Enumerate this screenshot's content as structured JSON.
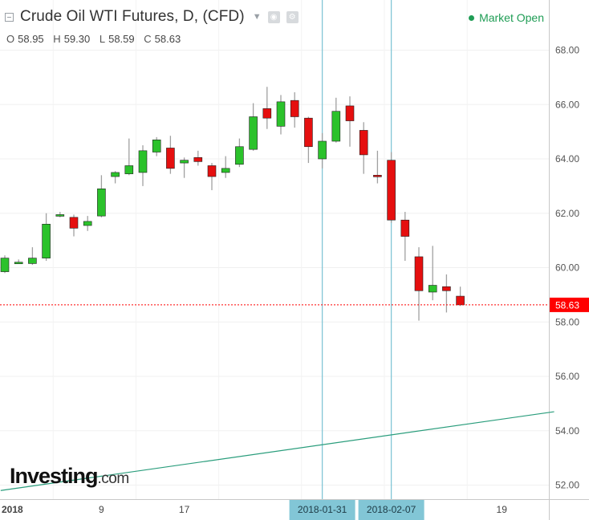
{
  "header": {
    "title": "Crude Oil WTI Futures, D, (CFD)",
    "status": "Market Open",
    "ohlc": [
      {
        "label": "O",
        "value": "58.95"
      },
      {
        "label": "H",
        "value": "59.30"
      },
      {
        "label": "L",
        "value": "58.59"
      },
      {
        "label": "C",
        "value": "58.63"
      }
    ]
  },
  "logo": {
    "main": "Investing",
    "domain": ".com"
  },
  "colors": {
    "up": "#2bc22b",
    "down": "#e50f0f",
    "wick": "#a0a0a0",
    "trend": "#2a9d7c",
    "marker": "#82c6d6",
    "price": "#ff0000"
  },
  "chart_data": {
    "type": "candlestick",
    "ylim": [
      51.5,
      69.7
    ],
    "y_ticks": [
      "52.00",
      "54.00",
      "56.00",
      "58.00",
      "60.00",
      "62.00",
      "64.00",
      "66.00",
      "68.00"
    ],
    "x_ticks": [
      {
        "label": "2018",
        "index": 0
      },
      {
        "label": "9",
        "index": 7
      },
      {
        "label": "17",
        "index": 13
      },
      {
        "label": "19",
        "index": 36
      }
    ],
    "x_markers": [
      {
        "label": "2018-01-31",
        "index": 23
      },
      {
        "label": "2018-02-07",
        "index": 28
      }
    ],
    "last_price": {
      "value": 58.63,
      "label": "58.63"
    },
    "trendline": {
      "start": {
        "index": -0.3,
        "value": 51.8
      },
      "end": {
        "index": 39.8,
        "value": 54.7
      }
    },
    "candles": [
      {
        "o": 59.85,
        "h": 60.45,
        "l": 59.8,
        "c": 60.35
      },
      {
        "o": 60.2,
        "h": 60.3,
        "l": 60.15,
        "c": 60.2
      },
      {
        "o": 60.15,
        "h": 60.75,
        "l": 60.1,
        "c": 60.35
      },
      {
        "o": 60.35,
        "h": 62.0,
        "l": 60.25,
        "c": 61.6
      },
      {
        "o": 61.9,
        "h": 62.05,
        "l": 61.85,
        "c": 61.95
      },
      {
        "o": 61.85,
        "h": 61.95,
        "l": 61.15,
        "c": 61.45
      },
      {
        "o": 61.55,
        "h": 61.9,
        "l": 61.35,
        "c": 61.7
      },
      {
        "o": 61.9,
        "h": 63.4,
        "l": 61.85,
        "c": 62.9
      },
      {
        "o": 63.35,
        "h": 63.55,
        "l": 63.1,
        "c": 63.5
      },
      {
        "o": 63.45,
        "h": 64.75,
        "l": 63.4,
        "c": 63.75
      },
      {
        "o": 63.5,
        "h": 64.5,
        "l": 63.0,
        "c": 64.3
      },
      {
        "o": 64.25,
        "h": 64.8,
        "l": 64.1,
        "c": 64.7
      },
      {
        "o": 64.4,
        "h": 64.85,
        "l": 63.45,
        "c": 63.65
      },
      {
        "o": 63.85,
        "h": 64.05,
        "l": 63.3,
        "c": 63.95
      },
      {
        "o": 64.05,
        "h": 64.3,
        "l": 63.75,
        "c": 63.9
      },
      {
        "o": 63.75,
        "h": 63.85,
        "l": 62.85,
        "c": 63.35
      },
      {
        "o": 63.5,
        "h": 64.1,
        "l": 63.3,
        "c": 63.65
      },
      {
        "o": 63.8,
        "h": 64.75,
        "l": 63.7,
        "c": 64.45
      },
      {
        "o": 64.35,
        "h": 66.05,
        "l": 64.3,
        "c": 65.55
      },
      {
        "o": 65.85,
        "h": 66.65,
        "l": 65.1,
        "c": 65.5
      },
      {
        "o": 65.2,
        "h": 66.35,
        "l": 64.9,
        "c": 66.1
      },
      {
        "o": 66.15,
        "h": 66.45,
        "l": 65.15,
        "c": 65.55
      },
      {
        "o": 65.5,
        "h": 65.55,
        "l": 63.85,
        "c": 64.45
      },
      {
        "o": 64.0,
        "h": 64.95,
        "l": 63.65,
        "c": 64.65
      },
      {
        "o": 64.65,
        "h": 66.25,
        "l": 64.6,
        "c": 65.75
      },
      {
        "o": 65.95,
        "h": 66.3,
        "l": 64.45,
        "c": 65.4
      },
      {
        "o": 65.05,
        "h": 65.35,
        "l": 63.45,
        "c": 64.15
      },
      {
        "o": 63.4,
        "h": 64.3,
        "l": 63.1,
        "c": 63.35
      },
      {
        "o": 63.95,
        "h": 64.25,
        "l": 61.65,
        "c": 61.75
      },
      {
        "o": 61.75,
        "h": 62.05,
        "l": 60.25,
        "c": 61.15
      },
      {
        "o": 60.4,
        "h": 60.75,
        "l": 58.05,
        "c": 59.15
      },
      {
        "o": 59.1,
        "h": 60.8,
        "l": 58.8,
        "c": 59.35
      },
      {
        "o": 59.3,
        "h": 59.75,
        "l": 58.35,
        "c": 59.15
      },
      {
        "o": 58.95,
        "h": 59.3,
        "l": 58.59,
        "c": 58.63
      }
    ]
  }
}
